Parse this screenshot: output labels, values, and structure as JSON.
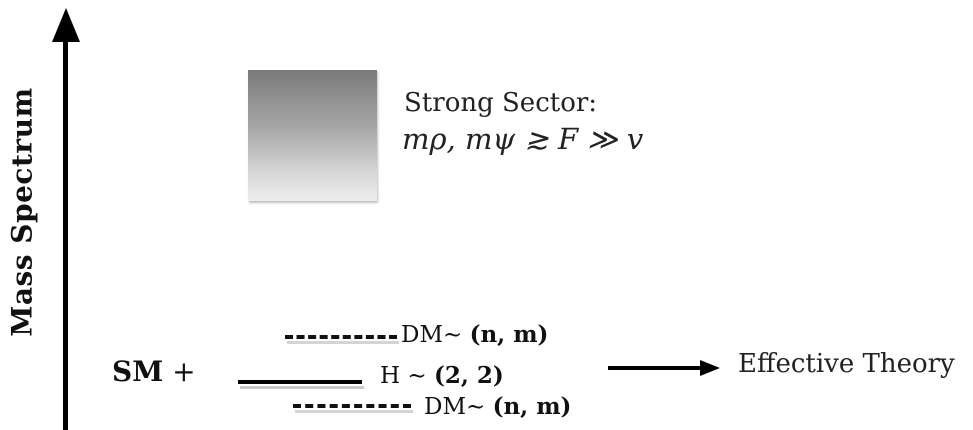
{
  "axis": {
    "label": "Mass Spectrum"
  },
  "strong_sector": {
    "title": "Strong Sector:",
    "formula": "mρ, mψ ≳ F ≫ v"
  },
  "sm": {
    "label_bold": "SM",
    "label_plus": " +"
  },
  "levels": {
    "dm_top": {
      "prefix": "DM∼ ",
      "rep": "(n, m)"
    },
    "higgs": {
      "prefix": "H ∼ ",
      "rep": "(2, 2)"
    },
    "dm_bottom": {
      "prefix": "DM∼ ",
      "rep": "(n, m)"
    }
  },
  "effective": {
    "label": "Effective Theory"
  },
  "colors": {
    "ink": "#111111",
    "box_top": "#7a7a7a",
    "box_bottom": "#eeeeee"
  }
}
